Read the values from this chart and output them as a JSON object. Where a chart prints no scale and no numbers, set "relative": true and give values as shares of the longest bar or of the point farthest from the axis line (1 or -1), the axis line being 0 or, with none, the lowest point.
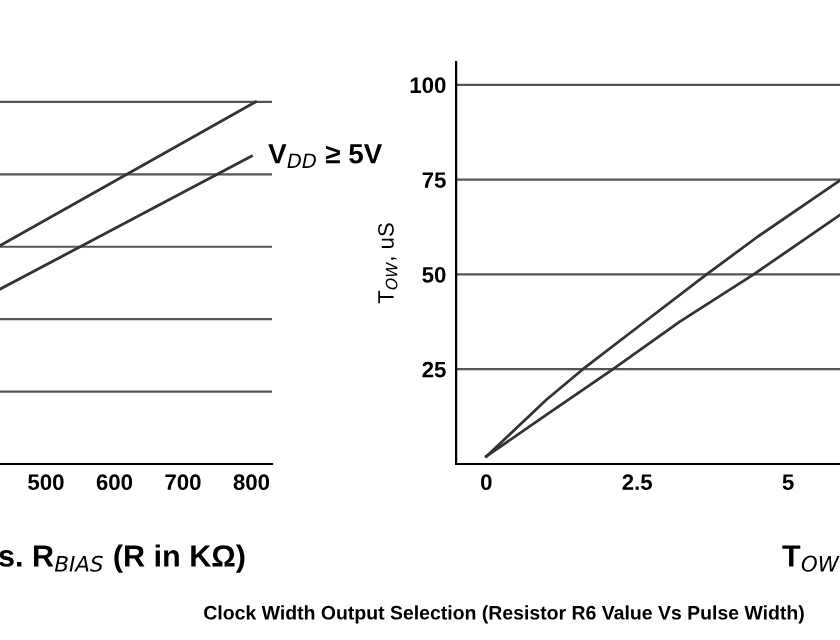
{
  "chart_data": [
    {
      "type": "line",
      "relative": true,
      "xlabel": "s. R$_{BIAS}$ (R in KΩ)",
      "xlim": [
        430,
        830
      ],
      "xticks": [
        500,
        600,
        700,
        800
      ],
      "grid": "y",
      "tick_labels": "x",
      "series": [
        {
          "color": "#333333",
          "x": [
            430,
            806
          ],
          "values": [
            0.6,
            1.0
          ]
        },
        {
          "color": "#333333",
          "x": [
            430,
            800
          ],
          "values": [
            0.48,
            0.85
          ]
        }
      ],
      "annotations": [
        {
          "text": "V$_{DD}$ ≥ 5V",
          "x": 800,
          "y": 0.85
        }
      ]
    },
    {
      "type": "line",
      "xlabel": "T$_{OW}$",
      "ylabel": "T$_{OW}$, uS",
      "xlim": [
        -0.5,
        5.86
      ],
      "xticks": [
        0,
        2.5,
        5
      ],
      "ylim": [
        0,
        106
      ],
      "yticks": [
        25,
        50,
        75,
        100
      ],
      "grid": "y",
      "series": [
        {
          "color": "#333333",
          "x": [
            0,
            0.5,
            1.0,
            1.6,
            2.5,
            3.65,
            4.5,
            5.86
          ],
          "values": [
            2,
            9.5,
            17,
            25,
            36,
            50,
            60,
            74.8
          ]
        },
        {
          "color": "#333333",
          "x": [
            0,
            1,
            2.1,
            3.2,
            4.43,
            5.86
          ],
          "values": [
            2,
            13,
            25,
            37.5,
            50,
            65.7
          ]
        }
      ],
      "annotations": [
        "Clock Width Output Selection (Resistor R6 Value Vs Pulse Width)"
      ]
    }
  ]
}
